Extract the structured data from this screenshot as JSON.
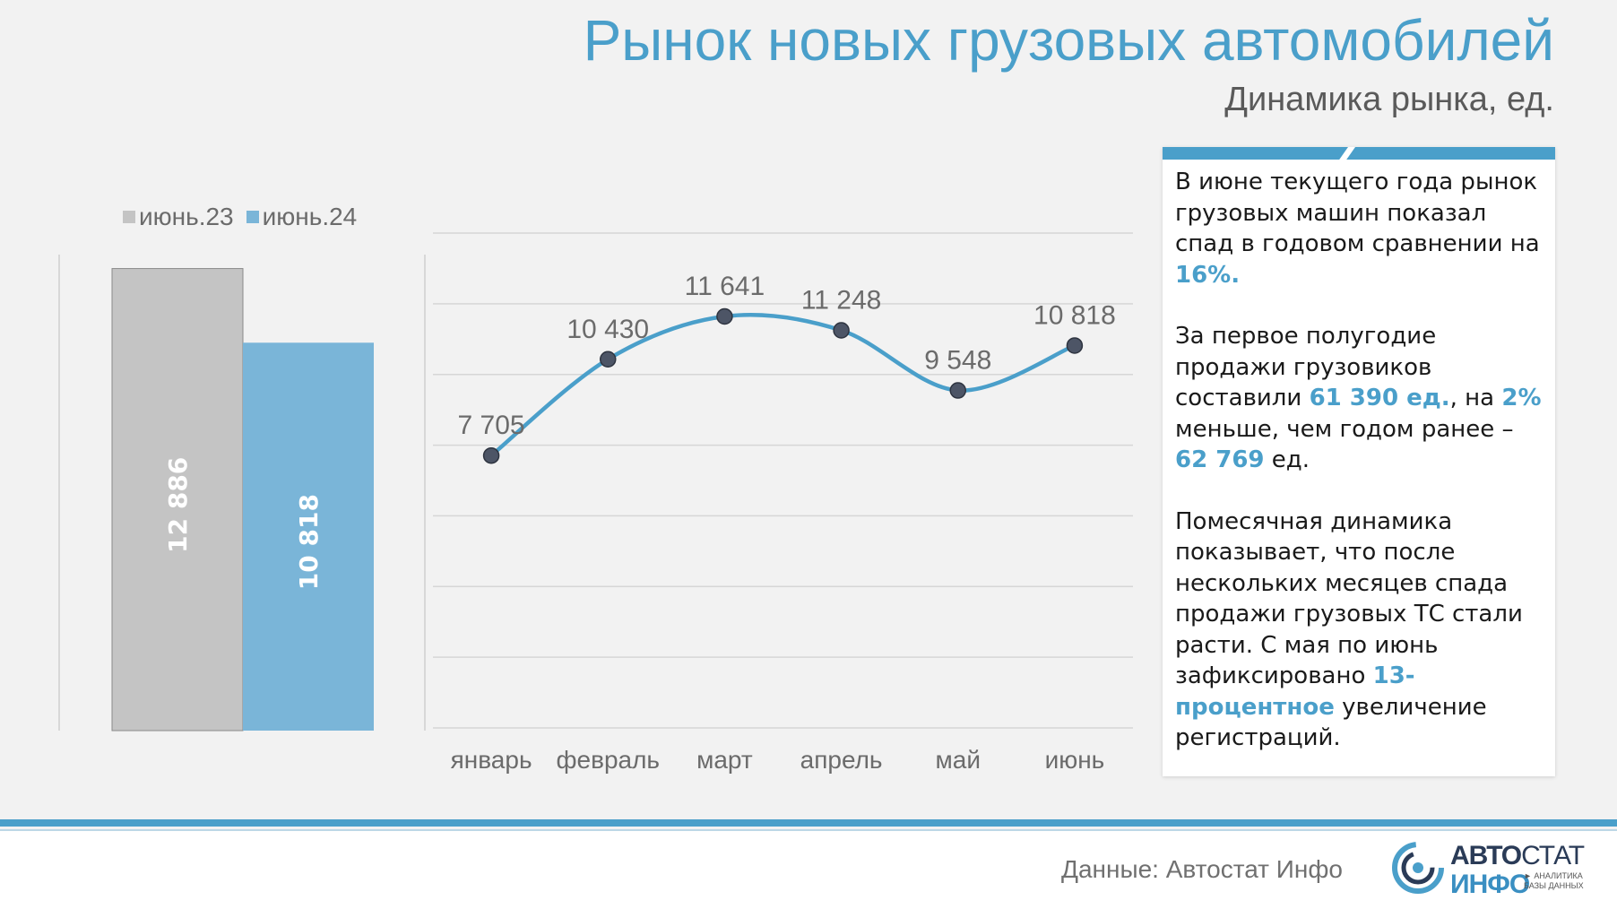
{
  "header": {
    "title": "Рынок новых грузовых автомобилей",
    "subtitle": "Динамика рынка, ед."
  },
  "colors": {
    "accent": "#4a9fca",
    "bar_prev": "#c4c4c4",
    "bar_curr": "#7ab5d8",
    "line": "#4a9fca",
    "marker": "#4d5566"
  },
  "chart_data": [
    {
      "type": "bar",
      "categories": [
        "июнь.23",
        "июнь.24"
      ],
      "values": [
        12886,
        10818
      ],
      "value_labels": [
        "12 886",
        "10 818"
      ],
      "legend": [
        "июнь.23",
        "июнь.24"
      ],
      "legend_position": "top-left",
      "ylim": [
        0,
        14000
      ],
      "grid": false
    },
    {
      "type": "line",
      "categories": [
        "январь",
        "февраль",
        "март",
        "апрель",
        "май",
        "июнь"
      ],
      "values": [
        7705,
        10430,
        11641,
        11248,
        9548,
        10818
      ],
      "value_labels": [
        "7 705",
        "10 430",
        "11 641",
        "11 248",
        "9 548",
        "10 818"
      ],
      "ylim": [
        0,
        14000
      ],
      "grid": true
    }
  ],
  "panel": {
    "p1_text": "В июне текущего года рынок грузовых машин показал спад в годовом сравнении на",
    "p1_hl": "16%.",
    "p2_text1": "За первое полугодие продажи грузовиков составили",
    "p2_hl1": "61 390 ед.",
    "p2_text2": ", на",
    "p2_hl2": "2%",
    "p2_text3": "меньше, чем годом ранее –",
    "p2_hl3": "62 769",
    "p2_text4": "ед.",
    "p3_text1": "Помесячная динамика показывает, что после нескольких месяцев спада продажи грузовых ТС стали расти. С мая по июнь зафиксировано",
    "p3_hl": "13-процентное",
    "p3_text2": "увеличение регистраций."
  },
  "footer": {
    "source": "Данные: Автостат Инфо",
    "logo_word1a": "АВТО",
    "logo_word1b": "СТАТ",
    "logo_word2": "ИНФО",
    "logo_tagline": "► АНАЛИТИКА БАЗЫ ДАННЫХ"
  }
}
